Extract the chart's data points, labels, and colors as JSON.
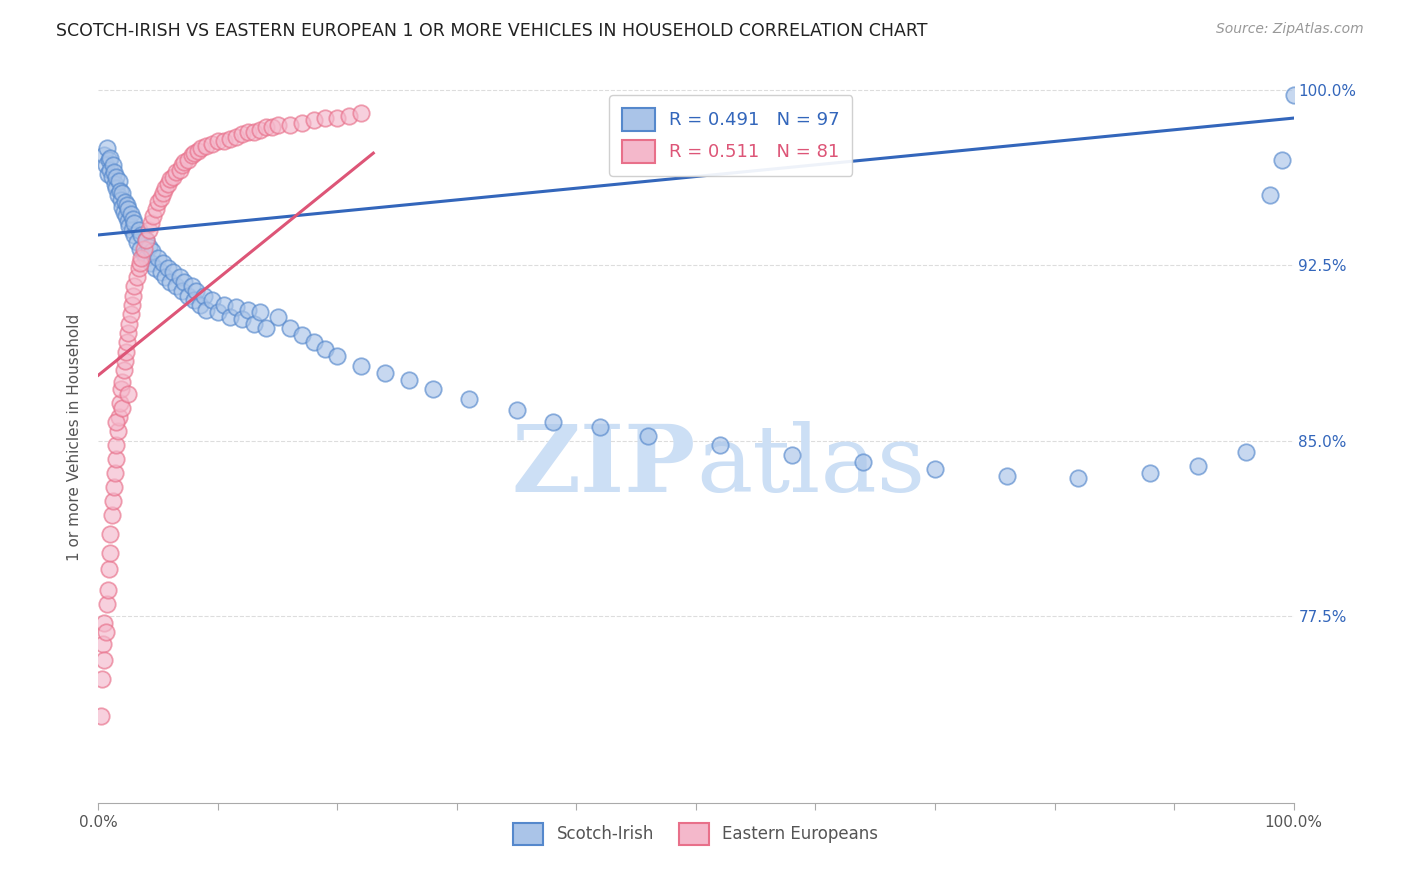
{
  "title": "SCOTCH-IRISH VS EASTERN EUROPEAN 1 OR MORE VEHICLES IN HOUSEHOLD CORRELATION CHART",
  "source": "Source: ZipAtlas.com",
  "ylabel": "1 or more Vehicles in Household",
  "ytick_labels": [
    "100.0%",
    "92.5%",
    "85.0%",
    "77.5%"
  ],
  "ytick_values": [
    1.0,
    0.925,
    0.85,
    0.775
  ],
  "xmin": 0.0,
  "xmax": 1.0,
  "ymin": 0.695,
  "ymax": 1.008,
  "legend_r_blue": "R = 0.491",
  "legend_n_blue": "N = 97",
  "legend_r_pink": "R = 0.511",
  "legend_n_pink": "N = 81",
  "blue_color": "#aac4e8",
  "pink_color": "#f4b8cb",
  "blue_edge_color": "#5588cc",
  "pink_edge_color": "#e8708a",
  "blue_line_color": "#3366bb",
  "pink_line_color": "#dd5577",
  "watermark_color": "#ccdff5",
  "bg_color": "#ffffff",
  "grid_color": "#dddddd",
  "blue_line_start_x": 0.0,
  "blue_line_start_y": 0.938,
  "blue_line_end_x": 1.0,
  "blue_line_end_y": 0.988,
  "pink_line_start_x": 0.0,
  "pink_line_start_y": 0.878,
  "pink_line_end_x": 0.23,
  "pink_line_end_y": 0.973,
  "blue_scatter_x": [
    0.005,
    0.006,
    0.007,
    0.008,
    0.009,
    0.01,
    0.01,
    0.011,
    0.012,
    0.013,
    0.014,
    0.015,
    0.015,
    0.016,
    0.017,
    0.018,
    0.019,
    0.02,
    0.02,
    0.021,
    0.022,
    0.023,
    0.024,
    0.025,
    0.025,
    0.026,
    0.027,
    0.028,
    0.029,
    0.03,
    0.03,
    0.032,
    0.034,
    0.035,
    0.036,
    0.038,
    0.04,
    0.04,
    0.042,
    0.044,
    0.045,
    0.047,
    0.05,
    0.052,
    0.054,
    0.056,
    0.058,
    0.06,
    0.062,
    0.065,
    0.068,
    0.07,
    0.072,
    0.075,
    0.078,
    0.08,
    0.082,
    0.085,
    0.088,
    0.09,
    0.095,
    0.1,
    0.105,
    0.11,
    0.115,
    0.12,
    0.125,
    0.13,
    0.135,
    0.14,
    0.15,
    0.16,
    0.17,
    0.18,
    0.19,
    0.2,
    0.22,
    0.24,
    0.26,
    0.28,
    0.31,
    0.35,
    0.38,
    0.42,
    0.46,
    0.52,
    0.58,
    0.64,
    0.7,
    0.76,
    0.82,
    0.88,
    0.92,
    0.96,
    0.98,
    0.99,
    1.0
  ],
  "blue_scatter_y": [
    0.972,
    0.968,
    0.975,
    0.964,
    0.97,
    0.966,
    0.971,
    0.963,
    0.968,
    0.965,
    0.96,
    0.958,
    0.963,
    0.955,
    0.961,
    0.957,
    0.953,
    0.95,
    0.956,
    0.948,
    0.952,
    0.946,
    0.951,
    0.944,
    0.949,
    0.942,
    0.947,
    0.94,
    0.945,
    0.938,
    0.943,
    0.935,
    0.94,
    0.932,
    0.938,
    0.93,
    0.936,
    0.928,
    0.933,
    0.926,
    0.931,
    0.924,
    0.928,
    0.922,
    0.926,
    0.92,
    0.924,
    0.918,
    0.922,
    0.916,
    0.92,
    0.914,
    0.918,
    0.912,
    0.916,
    0.91,
    0.914,
    0.908,
    0.912,
    0.906,
    0.91,
    0.905,
    0.908,
    0.903,
    0.907,
    0.902,
    0.906,
    0.9,
    0.905,
    0.898,
    0.903,
    0.898,
    0.895,
    0.892,
    0.889,
    0.886,
    0.882,
    0.879,
    0.876,
    0.872,
    0.868,
    0.863,
    0.858,
    0.856,
    0.852,
    0.848,
    0.844,
    0.841,
    0.838,
    0.835,
    0.834,
    0.836,
    0.839,
    0.845,
    0.955,
    0.97,
    0.998
  ],
  "pink_scatter_x": [
    0.002,
    0.003,
    0.004,
    0.005,
    0.005,
    0.006,
    0.007,
    0.008,
    0.009,
    0.01,
    0.01,
    0.011,
    0.012,
    0.013,
    0.014,
    0.015,
    0.015,
    0.016,
    0.017,
    0.018,
    0.019,
    0.02,
    0.021,
    0.022,
    0.023,
    0.024,
    0.025,
    0.026,
    0.027,
    0.028,
    0.029,
    0.03,
    0.032,
    0.034,
    0.035,
    0.036,
    0.038,
    0.04,
    0.042,
    0.044,
    0.046,
    0.048,
    0.05,
    0.052,
    0.054,
    0.056,
    0.058,
    0.06,
    0.062,
    0.065,
    0.068,
    0.07,
    0.072,
    0.075,
    0.078,
    0.08,
    0.083,
    0.086,
    0.09,
    0.095,
    0.1,
    0.105,
    0.11,
    0.115,
    0.12,
    0.125,
    0.13,
    0.135,
    0.14,
    0.145,
    0.15,
    0.16,
    0.17,
    0.18,
    0.19,
    0.2,
    0.21,
    0.22,
    0.015,
    0.02,
    0.025
  ],
  "pink_scatter_y": [
    0.732,
    0.748,
    0.763,
    0.756,
    0.772,
    0.768,
    0.78,
    0.786,
    0.795,
    0.802,
    0.81,
    0.818,
    0.824,
    0.83,
    0.836,
    0.842,
    0.848,
    0.854,
    0.86,
    0.866,
    0.872,
    0.875,
    0.88,
    0.884,
    0.888,
    0.892,
    0.896,
    0.9,
    0.904,
    0.908,
    0.912,
    0.916,
    0.92,
    0.924,
    0.926,
    0.928,
    0.932,
    0.936,
    0.94,
    0.943,
    0.946,
    0.949,
    0.952,
    0.954,
    0.956,
    0.958,
    0.96,
    0.962,
    0.963,
    0.965,
    0.966,
    0.968,
    0.969,
    0.97,
    0.972,
    0.973,
    0.974,
    0.975,
    0.976,
    0.977,
    0.978,
    0.978,
    0.979,
    0.98,
    0.981,
    0.982,
    0.982,
    0.983,
    0.984,
    0.984,
    0.985,
    0.985,
    0.986,
    0.987,
    0.988,
    0.988,
    0.989,
    0.99,
    0.858,
    0.864,
    0.87
  ]
}
